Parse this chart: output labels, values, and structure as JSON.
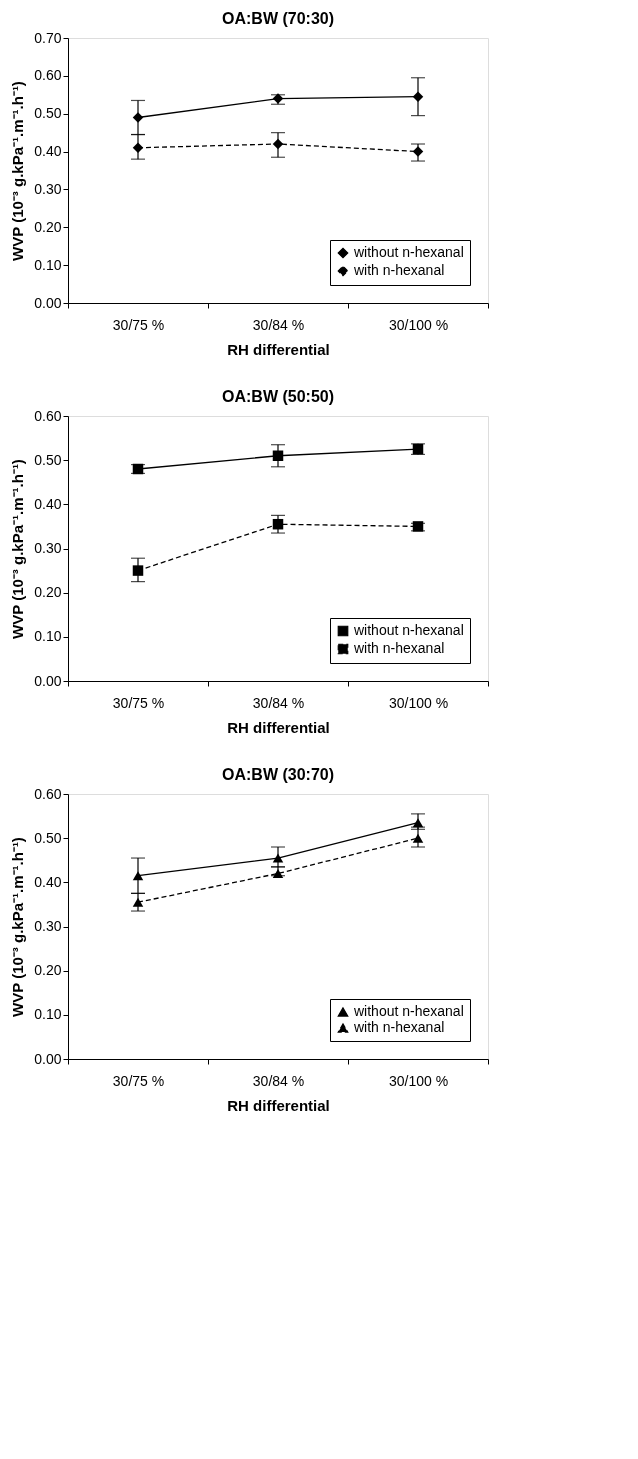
{
  "chart_data": [
    {
      "type": "line",
      "title": "OA:BW (70:30)",
      "xlabel": "RH differential",
      "ylabel": "WVP (10⁻³ g.kPa⁻¹.m⁻¹.h⁻¹)",
      "categories": [
        "30/75 %",
        "30/84 %",
        "30/100 %"
      ],
      "ylim": [
        0,
        0.7
      ],
      "yticks": [
        {
          "value": 0,
          "label": "0.00"
        },
        {
          "value": 0.1,
          "label": "0.10"
        },
        {
          "value": 0.2,
          "label": "0.20"
        },
        {
          "value": 0.3,
          "label": "0.30"
        },
        {
          "value": 0.4,
          "label": "0.40"
        },
        {
          "value": 0.5,
          "label": "0.50"
        },
        {
          "value": 0.6,
          "label": "0.60"
        },
        {
          "value": 0.7,
          "label": "0.70"
        }
      ],
      "grid": false,
      "legend": "bottom right",
      "marker": "diamond",
      "series": [
        {
          "name": "without n-hexanal",
          "color": "#000000",
          "line_style": "solid",
          "values": [
            0.49,
            0.54,
            0.545
          ],
          "errors": [
            [
              0.445,
              0.535
            ],
            [
              0.525,
              0.55
            ],
            [
              0.495,
              0.595
            ]
          ]
        },
        {
          "name": "with n-hexanal",
          "color": "#000000",
          "line_style": "dashed",
          "values": [
            0.41,
            0.42,
            0.4
          ],
          "errors": [
            [
              0.38,
              0.445
            ],
            [
              0.385,
              0.45
            ],
            [
              0.375,
              0.42
            ]
          ]
        }
      ]
    },
    {
      "type": "line",
      "title": "OA:BW (50:50)",
      "xlabel": "RH differential",
      "ylabel": "WVP (10⁻³ g.kPa⁻¹.m⁻¹.h⁻¹)",
      "categories": [
        "30/75 %",
        "30/84 %",
        "30/100 %"
      ],
      "ylim": [
        0,
        0.6
      ],
      "yticks": [
        {
          "value": 0,
          "label": "0.00"
        },
        {
          "value": 0.1,
          "label": "0.10"
        },
        {
          "value": 0.2,
          "label": "0.20"
        },
        {
          "value": 0.3,
          "label": "0.30"
        },
        {
          "value": 0.4,
          "label": "0.40"
        },
        {
          "value": 0.5,
          "label": "0.50"
        },
        {
          "value": 0.6,
          "label": "0.60"
        }
      ],
      "grid": false,
      "legend": "bottom right",
      "marker": "square",
      "series": [
        {
          "name": "without n-hexanal",
          "color": "#000000",
          "line_style": "solid",
          "values": [
            0.48,
            0.51,
            0.525
          ],
          "errors": [
            [
              0.47,
              0.49
            ],
            [
              0.485,
              0.535
            ],
            [
              0.513,
              0.537
            ]
          ]
        },
        {
          "name": "with n-hexanal",
          "color": "#000000",
          "line_style": "dashed",
          "values": [
            0.25,
            0.355,
            0.35
          ],
          "errors": [
            [
              0.225,
              0.278
            ],
            [
              0.335,
              0.375
            ],
            [
              0.34,
              0.357
            ]
          ]
        }
      ]
    },
    {
      "type": "line",
      "title": "OA:BW (30:70)",
      "xlabel": "RH differential",
      "ylabel": "WVP (10⁻³ g.kPa⁻¹.m⁻¹.h⁻¹)",
      "categories": [
        "30/75 %",
        "30/84 %",
        "30/100 %"
      ],
      "ylim": [
        0,
        0.6
      ],
      "yticks": [
        {
          "value": 0,
          "label": "0.00"
        },
        {
          "value": 0.1,
          "label": "0.10"
        },
        {
          "value": 0.2,
          "label": "0.20"
        },
        {
          "value": 0.3,
          "label": "0.30"
        },
        {
          "value": 0.4,
          "label": "0.40"
        },
        {
          "value": 0.5,
          "label": "0.50"
        },
        {
          "value": 0.6,
          "label": "0.60"
        }
      ],
      "grid": false,
      "legend": "bottom right",
      "marker": "triangle",
      "series": [
        {
          "name": "without n-hexanal",
          "color": "#000000",
          "line_style": "solid",
          "values": [
            0.415,
            0.455,
            0.535
          ],
          "errors": [
            [
              0.375,
              0.455
            ],
            [
              0.435,
              0.48
            ],
            [
              0.52,
              0.555
            ]
          ]
        },
        {
          "name": "with n-hexanal",
          "color": "#000000",
          "line_style": "dashed",
          "values": [
            0.355,
            0.42,
            0.5
          ],
          "errors": [
            [
              0.335,
              0.375
            ],
            [
              0.415,
              0.435
            ],
            [
              0.48,
              0.525
            ]
          ]
        }
      ]
    }
  ]
}
